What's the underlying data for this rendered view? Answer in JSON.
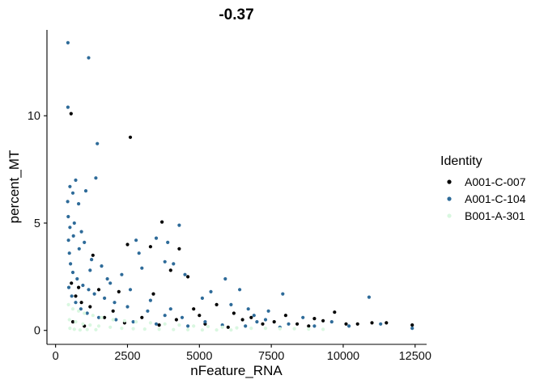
{
  "chart_data": {
    "type": "scatter",
    "title": "-0.37",
    "xlabel": "nFeature_RNA",
    "ylabel": "percent_MT",
    "xlim": [
      -300,
      12900
    ],
    "ylim": [
      -0.65,
      14
    ],
    "x_ticks": [
      0,
      2500,
      5000,
      7500,
      10000,
      12500
    ],
    "x_tick_labels": [
      "0",
      "2500",
      "5000",
      "7500",
      "10000",
      "12500"
    ],
    "y_ticks": [
      0,
      5,
      10
    ],
    "y_tick_labels": [
      "0",
      "5",
      "10"
    ],
    "grid": false,
    "legend": {
      "title": "Identity",
      "position": "right"
    },
    "series": [
      {
        "name": "A001-C-007",
        "color": "#000000",
        "points": [
          [
            540,
            10.1
          ],
          [
            2600,
            9.0
          ],
          [
            3700,
            5.05
          ],
          [
            2500,
            4.0
          ],
          [
            3300,
            3.9
          ],
          [
            4300,
            3.8
          ],
          [
            1300,
            3.5
          ],
          [
            4000,
            2.8
          ],
          [
            4600,
            2.5
          ],
          [
            550,
            2.2
          ],
          [
            800,
            2.0
          ],
          [
            1500,
            1.9
          ],
          [
            2200,
            1.8
          ],
          [
            700,
            1.6
          ],
          [
            3400,
            1.7
          ],
          [
            5600,
            1.2
          ],
          [
            4800,
            1.0
          ],
          [
            6200,
            0.8
          ],
          [
            900,
            1.3
          ],
          [
            1200,
            1.1
          ],
          [
            2000,
            0.9
          ],
          [
            3000,
            0.6
          ],
          [
            6500,
            0.5
          ],
          [
            7200,
            0.3
          ],
          [
            8000,
            0.7
          ],
          [
            9000,
            0.55
          ],
          [
            9700,
            0.85
          ],
          [
            10100,
            0.3
          ],
          [
            10500,
            0.3
          ],
          [
            11000,
            0.35
          ],
          [
            11500,
            0.35
          ],
          [
            12400,
            0.25
          ],
          [
            8800,
            0.2
          ],
          [
            7600,
            0.4
          ],
          [
            5200,
            0.3
          ],
          [
            4200,
            0.5
          ],
          [
            1700,
            0.6
          ],
          [
            600,
            0.4
          ],
          [
            1000,
            0.2
          ],
          [
            2400,
            0.35
          ],
          [
            3600,
            0.25
          ],
          [
            6000,
            0.15
          ],
          [
            8400,
            0.3
          ],
          [
            9300,
            0.45
          ],
          [
            6800,
            0.6
          ],
          [
            5000,
            0.7
          ]
        ]
      },
      {
        "name": "A001-C-104",
        "color": "#2e6b99",
        "points": [
          [
            430,
            13.4
          ],
          [
            1150,
            12.7
          ],
          [
            430,
            10.4
          ],
          [
            1450,
            8.7
          ],
          [
            1400,
            7.1
          ],
          [
            700,
            7.0
          ],
          [
            1050,
            6.5
          ],
          [
            500,
            6.7
          ],
          [
            600,
            6.4
          ],
          [
            420,
            6.0
          ],
          [
            800,
            5.9
          ],
          [
            4300,
            4.9
          ],
          [
            3900,
            4.1
          ],
          [
            2800,
            4.2
          ],
          [
            3500,
            4.3
          ],
          [
            2900,
            3.6
          ],
          [
            3800,
            3.2
          ],
          [
            4100,
            3.1
          ],
          [
            3000,
            2.9
          ],
          [
            4500,
            2.6
          ],
          [
            5900,
            2.4
          ],
          [
            6400,
            1.9
          ],
          [
            5400,
            1.8
          ],
          [
            7900,
            1.7
          ],
          [
            10900,
            1.55
          ],
          [
            5100,
            1.5
          ],
          [
            6100,
            1.2
          ],
          [
            6700,
            1.0
          ],
          [
            7400,
            0.9
          ],
          [
            8600,
            0.6
          ],
          [
            9600,
            0.4
          ],
          [
            10200,
            0.2
          ],
          [
            11300,
            0.3
          ],
          [
            12400,
            0.1
          ],
          [
            8100,
            0.3
          ],
          [
            7000,
            0.4
          ],
          [
            2300,
            2.6
          ],
          [
            1900,
            2.2
          ],
          [
            1600,
            3.0
          ],
          [
            1200,
            2.8
          ],
          [
            1000,
            4.1
          ],
          [
            900,
            4.6
          ],
          [
            650,
            5.0
          ],
          [
            500,
            4.8
          ],
          [
            450,
            4.2
          ],
          [
            480,
            3.6
          ],
          [
            520,
            3.1
          ],
          [
            600,
            2.7
          ],
          [
            750,
            2.4
          ],
          [
            950,
            2.1
          ],
          [
            1150,
            1.9
          ],
          [
            1350,
            1.7
          ],
          [
            1700,
            1.5
          ],
          [
            2050,
            1.3
          ],
          [
            2500,
            1.1
          ],
          [
            3200,
            0.9
          ],
          [
            3800,
            0.7
          ],
          [
            4400,
            0.6
          ],
          [
            5200,
            0.4
          ],
          [
            460,
            2.0
          ],
          [
            560,
            1.6
          ],
          [
            700,
            1.3
          ],
          [
            880,
            1.0
          ],
          [
            1100,
            0.8
          ],
          [
            1500,
            0.6
          ],
          [
            2100,
            0.5
          ],
          [
            2700,
            0.4
          ],
          [
            3500,
            0.3
          ],
          [
            4600,
            0.2
          ],
          [
            5800,
            0.25
          ],
          [
            6600,
            0.2
          ],
          [
            7800,
            0.15
          ],
          [
            9000,
            0.2
          ],
          [
            440,
            5.3
          ],
          [
            620,
            4.4
          ],
          [
            820,
            3.8
          ],
          [
            1250,
            3.3
          ],
          [
            1800,
            2.4
          ],
          [
            2600,
            1.9
          ],
          [
            3300,
            1.4
          ],
          [
            4000,
            1.0
          ],
          [
            6900,
            0.7
          ],
          [
            7300,
            0.5
          ]
        ]
      },
      {
        "name": "B001-A-301",
        "color": "#d9f7e0",
        "points": [
          [
            450,
            1.2
          ],
          [
            600,
            1.0
          ],
          [
            800,
            0.9
          ],
          [
            1000,
            0.8
          ],
          [
            1300,
            0.7
          ],
          [
            1600,
            0.6
          ],
          [
            2000,
            0.5
          ],
          [
            2400,
            0.45
          ],
          [
            2800,
            0.4
          ],
          [
            3300,
            0.35
          ],
          [
            3800,
            0.3
          ],
          [
            4300,
            0.25
          ],
          [
            4800,
            0.2
          ],
          [
            5300,
            0.18
          ],
          [
            5800,
            0.15
          ],
          [
            6300,
            0.12
          ],
          [
            6800,
            0.1
          ],
          [
            7300,
            0.1
          ],
          [
            7800,
            0.08
          ],
          [
            8300,
            0.08
          ],
          [
            8800,
            0.06
          ],
          [
            9300,
            0.05
          ],
          [
            480,
            0.5
          ],
          [
            700,
            0.4
          ],
          [
            950,
            0.3
          ],
          [
            1200,
            0.25
          ],
          [
            1500,
            0.2
          ],
          [
            1900,
            0.15
          ],
          [
            2300,
            0.1
          ],
          [
            2700,
            0.08
          ],
          [
            3100,
            0.06
          ],
          [
            3600,
            0.05
          ],
          [
            4100,
            0.04
          ],
          [
            4600,
            0.03
          ],
          [
            5100,
            0.02
          ],
          [
            5600,
            0.02
          ],
          [
            6100,
            0.02
          ],
          [
            500,
            0.1
          ],
          [
            650,
            0.05
          ],
          [
            850,
            0.02
          ],
          [
            1100,
            0.04
          ],
          [
            1400,
            0.03
          ]
        ]
      }
    ]
  }
}
